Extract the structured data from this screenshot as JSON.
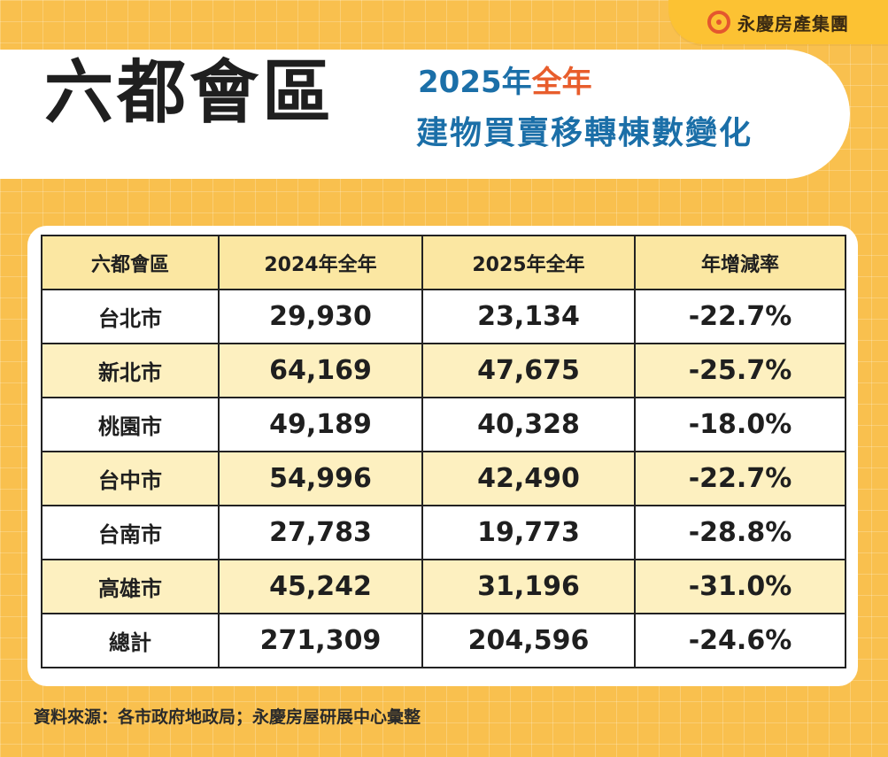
{
  "brand": {
    "name": "永慶房產集團",
    "logo_icon": "brand-circle-logo"
  },
  "header": {
    "title": "六都會區",
    "subtitle_year": "2025年",
    "subtitle_accent": "全年",
    "subtitle_line2": "建物買賣移轉棟數變化"
  },
  "table": {
    "headers": [
      "六都會區",
      "2024年全年",
      "2025年全年",
      "年增減率"
    ],
    "rows": [
      [
        "台北市",
        "29,930",
        "23,134",
        "-22.7%"
      ],
      [
        "新北市",
        "64,169",
        "47,675",
        "-25.7%"
      ],
      [
        "桃園市",
        "49,189",
        "40,328",
        "-18.0%"
      ],
      [
        "台中市",
        "54,996",
        "42,490",
        "-22.7%"
      ],
      [
        "台南市",
        "27,783",
        "19,773",
        "-28.8%"
      ],
      [
        "高雄市",
        "45,242",
        "31,196",
        "-31.0%"
      ],
      [
        "總計",
        "271,309",
        "204,596",
        "-24.6%"
      ]
    ]
  },
  "source": "資料來源：各市政府地政局；永慶房屋研展中心彙整",
  "colors": {
    "background": "#f9c04e",
    "title_blue": "#1b6fa8",
    "accent_orange": "#e85d2c",
    "row_shade": "#fdf0c0"
  }
}
